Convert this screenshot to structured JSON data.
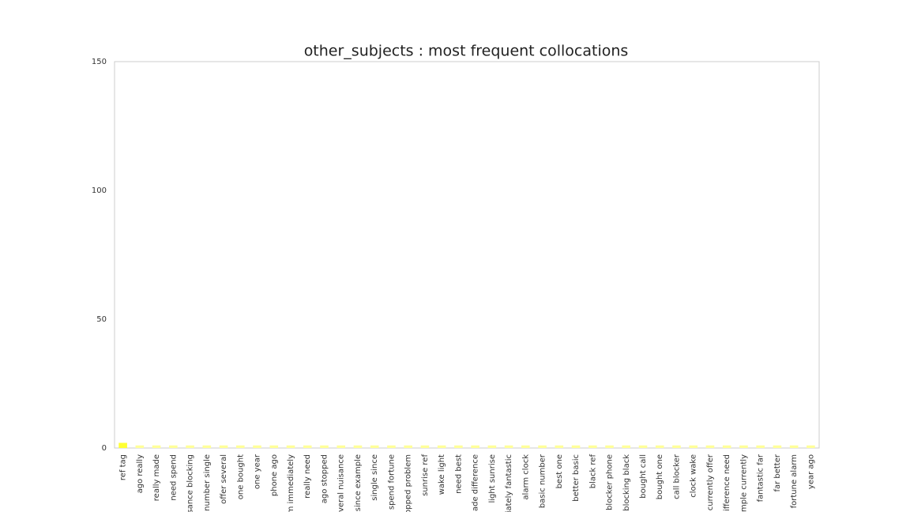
{
  "chart_data": {
    "type": "bar",
    "title": "other_subjects : most frequent collocations",
    "categories": [
      "ref tag",
      "ago really",
      "really made",
      "need spend",
      "sance blocking",
      "number single",
      "offer several",
      "one bought",
      "one year",
      "phone ago",
      "m immediately",
      "really need",
      "ago stopped",
      "veral nuisance",
      "since example",
      "single since",
      "spend fortune",
      "opped problem",
      "sunrise ref",
      "wake light",
      "need best",
      "ade difference",
      "light sunrise",
      "iately fantastic",
      "alarm clock",
      "basic number",
      "best one",
      "better basic",
      "black ref",
      "blocker phone",
      "blocking black",
      "bought call",
      "bought one",
      "call blocker",
      "clock wake",
      "currently offer",
      "ifference need",
      "mple currently",
      "fantastic far",
      "far better",
      "fortune alarm",
      "year ago"
    ],
    "values": [
      2,
      1,
      1,
      1,
      1,
      1,
      1,
      1,
      1,
      1,
      1,
      1,
      1,
      1,
      1,
      1,
      1,
      1,
      1,
      1,
      1,
      1,
      1,
      1,
      1,
      1,
      1,
      1,
      1,
      1,
      1,
      1,
      1,
      1,
      1,
      1,
      1,
      1,
      1,
      1,
      1,
      1
    ],
    "colors": [
      "#ffff33",
      "#ffff99",
      "#ffff99",
      "#ffff99",
      "#ffff99",
      "#ffff99",
      "#ffff99",
      "#ffff99",
      "#ffff99",
      "#ffff99",
      "#ffff99",
      "#ffff99",
      "#ffff99",
      "#ffff99",
      "#ffff99",
      "#ffff99",
      "#ffff99",
      "#ffff99",
      "#ffff99",
      "#ffff99",
      "#ffff99",
      "#ffff99",
      "#ffff99",
      "#ffff99",
      "#ffff99",
      "#ffff99",
      "#ffff99",
      "#ffff99",
      "#ffff99",
      "#ffff99",
      "#ffff99",
      "#ffff99",
      "#ffff99",
      "#ffff99",
      "#ffff99",
      "#ffff99",
      "#ffff99",
      "#ffff99",
      "#ffff99",
      "#ffff99",
      "#ffff99",
      "#ffff99"
    ],
    "ylim": [
      0,
      150
    ],
    "yticks": [
      0,
      50,
      100,
      150
    ],
    "grid": false
  }
}
